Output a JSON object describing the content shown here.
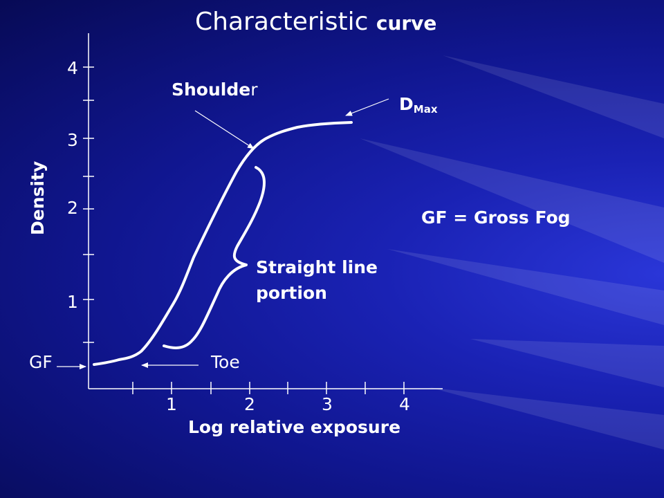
{
  "title": {
    "regular": "Characteristic ",
    "bold": "curve"
  },
  "axes": {
    "ylabel": "Density",
    "xlabel": "Log relative exposure",
    "y_ticks": [
      "1",
      "2",
      "3",
      "4"
    ],
    "x_ticks": [
      "1",
      "2",
      "3",
      "4"
    ]
  },
  "labels": {
    "shoulder_bold": "Shoulde",
    "shoulder_rest": "r",
    "dmax_main": "D",
    "dmax_sub": "Max",
    "gross_fog_def": "GF = Gross Fog",
    "straight_line_1": "Straight line",
    "straight_line_2": "portion",
    "gf": "GF",
    "toe": "Toe"
  },
  "colors": {
    "background": "#10168f",
    "foreground": "#ffffff"
  }
}
